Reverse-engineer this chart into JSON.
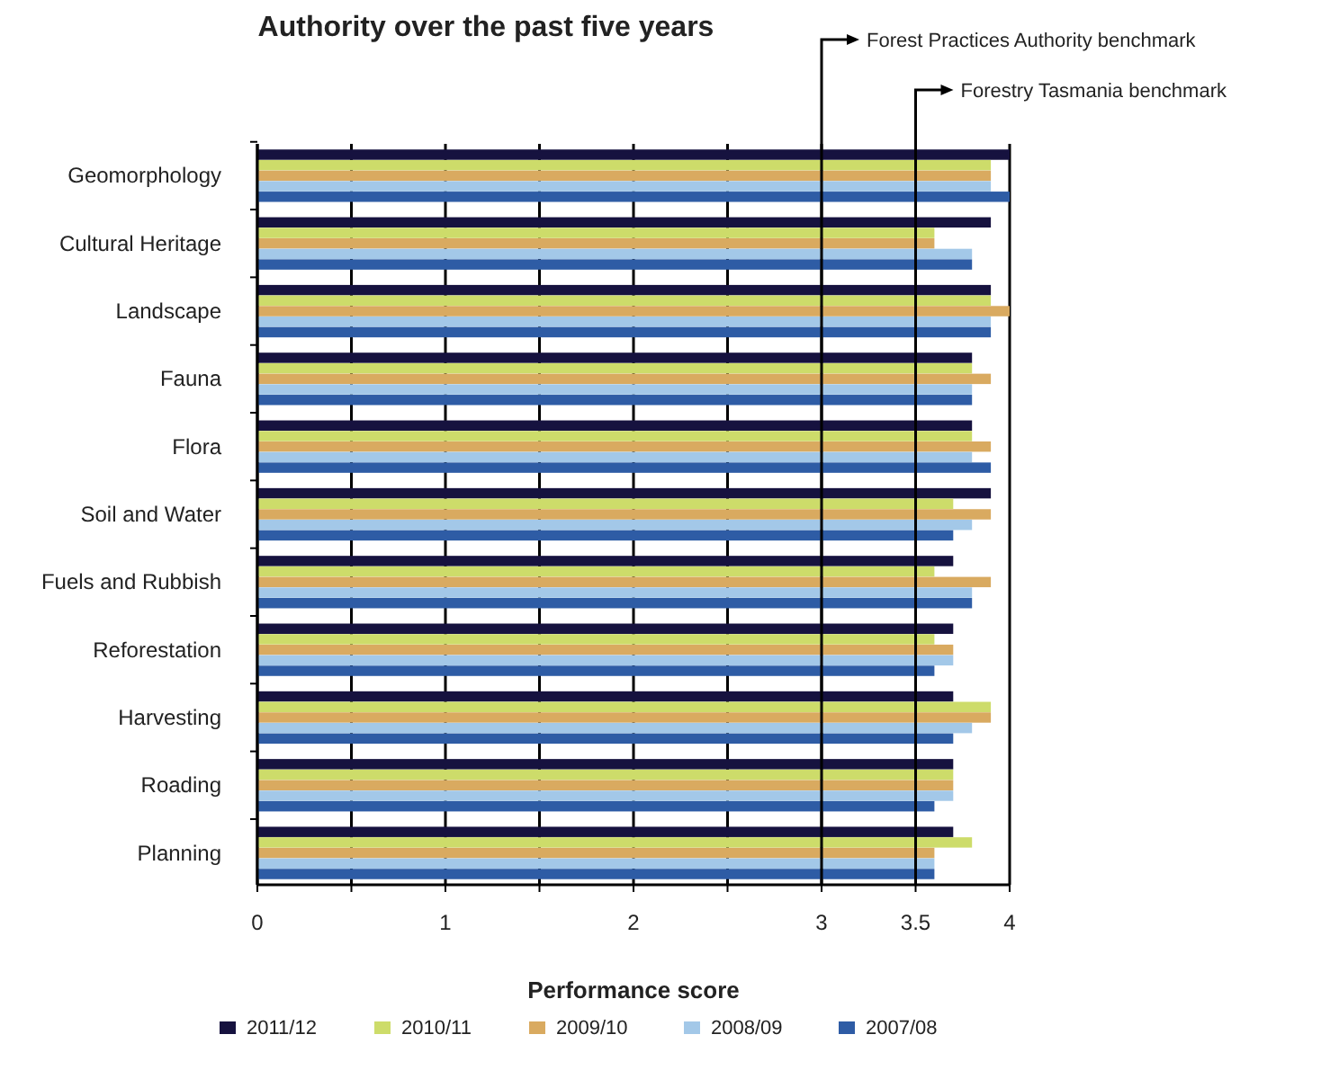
{
  "chart_data": {
    "type": "bar",
    "orientation": "horizontal",
    "title": "Authority over the past five years",
    "xlabel": "Performance score",
    "categories": [
      "Geomorphology",
      "Cultural Heritage",
      "Landscape",
      "Fauna",
      "Flora",
      "Soil and Water",
      "Fuels and Rubbish",
      "Reforestation",
      "Harvesting",
      "Roading",
      "Planning"
    ],
    "series": [
      {
        "name": "2011/12",
        "color": "#16123f",
        "values": [
          4.0,
          3.9,
          3.9,
          3.8,
          3.8,
          3.9,
          3.7,
          3.7,
          3.7,
          3.7,
          3.7
        ]
      },
      {
        "name": "2010/11",
        "color": "#cddc6a",
        "values": [
          3.9,
          3.6,
          3.9,
          3.8,
          3.8,
          3.7,
          3.6,
          3.6,
          3.9,
          3.7,
          3.8
        ]
      },
      {
        "name": "2009/10",
        "color": "#d9aa60",
        "values": [
          3.9,
          3.6,
          4.0,
          3.9,
          3.9,
          3.9,
          3.9,
          3.7,
          3.9,
          3.7,
          3.6
        ]
      },
      {
        "name": "2008/09",
        "color": "#a3c8e8",
        "values": [
          3.9,
          3.8,
          3.9,
          3.8,
          3.8,
          3.8,
          3.8,
          3.7,
          3.8,
          3.7,
          3.6
        ]
      },
      {
        "name": "2007/08",
        "color": "#2e5ca5",
        "values": [
          4.0,
          3.8,
          3.9,
          3.8,
          3.9,
          3.7,
          3.8,
          3.6,
          3.7,
          3.6,
          3.6
        ]
      }
    ],
    "xlim": [
      0,
      4
    ],
    "xticks": [
      0,
      {
        "value": 0.5,
        "label": null
      },
      1,
      {
        "value": 1.5,
        "label": null
      },
      2,
      {
        "value": 2.5,
        "label": null
      },
      3,
      3.5,
      4
    ],
    "grid": "x",
    "ref_lines": [
      {
        "axis": "x",
        "value": 3,
        "label": "Forest Practices Authority benchmark",
        "color": "#000000"
      },
      {
        "axis": "x",
        "value": 3.5,
        "label": "Forestry Tasmania benchmark",
        "color": "#000000"
      }
    ],
    "legend": "bottom"
  }
}
